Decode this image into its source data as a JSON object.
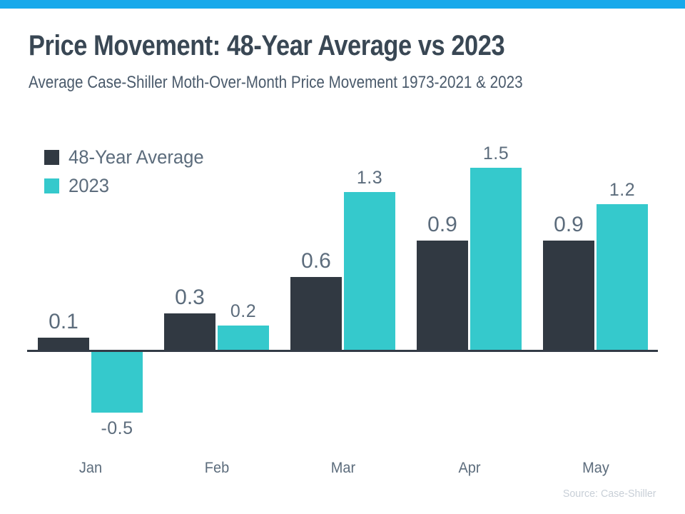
{
  "header": {
    "title": "Price Movement: 48-Year Average vs 2023",
    "subtitle": "Average Case-Shiller Moth-Over-Month Price Movement 1973-2021 & 2023"
  },
  "footer": {
    "source": "Source: Case-Shiller"
  },
  "theme": {
    "accent_bar_color": "#17A9EB",
    "title_color": "#394754",
    "subtitle_color": "#4A5A6B",
    "label_color": "#5C6C7C",
    "axis_color": "#333B46",
    "source_color": "#C8CFD7"
  },
  "chart_data": {
    "type": "bar",
    "title": "Price Movement: 48-Year Average vs 2023",
    "subtitle": "Average Case-Shiller Moth-Over-Month Price Movement 1973-2021 & 2023",
    "categories": [
      "Jan",
      "Feb",
      "Mar",
      "Apr",
      "May"
    ],
    "series": [
      {
        "name": "48-Year Average",
        "color": "#313942",
        "values": [
          0.1,
          0.3,
          0.6,
          0.9,
          0.9
        ]
      },
      {
        "name": "2023",
        "color": "#35C9CC",
        "values": [
          -0.5,
          0.2,
          1.3,
          1.5,
          1.2
        ]
      }
    ],
    "xlabel": "",
    "ylabel": "",
    "ylim": [
      -0.7,
      1.7
    ],
    "baseline": 0,
    "grid": false,
    "y_axis_visible": false,
    "legend_position": "upper-left",
    "data_labels": true,
    "source": "Source: Case-Shiller"
  }
}
